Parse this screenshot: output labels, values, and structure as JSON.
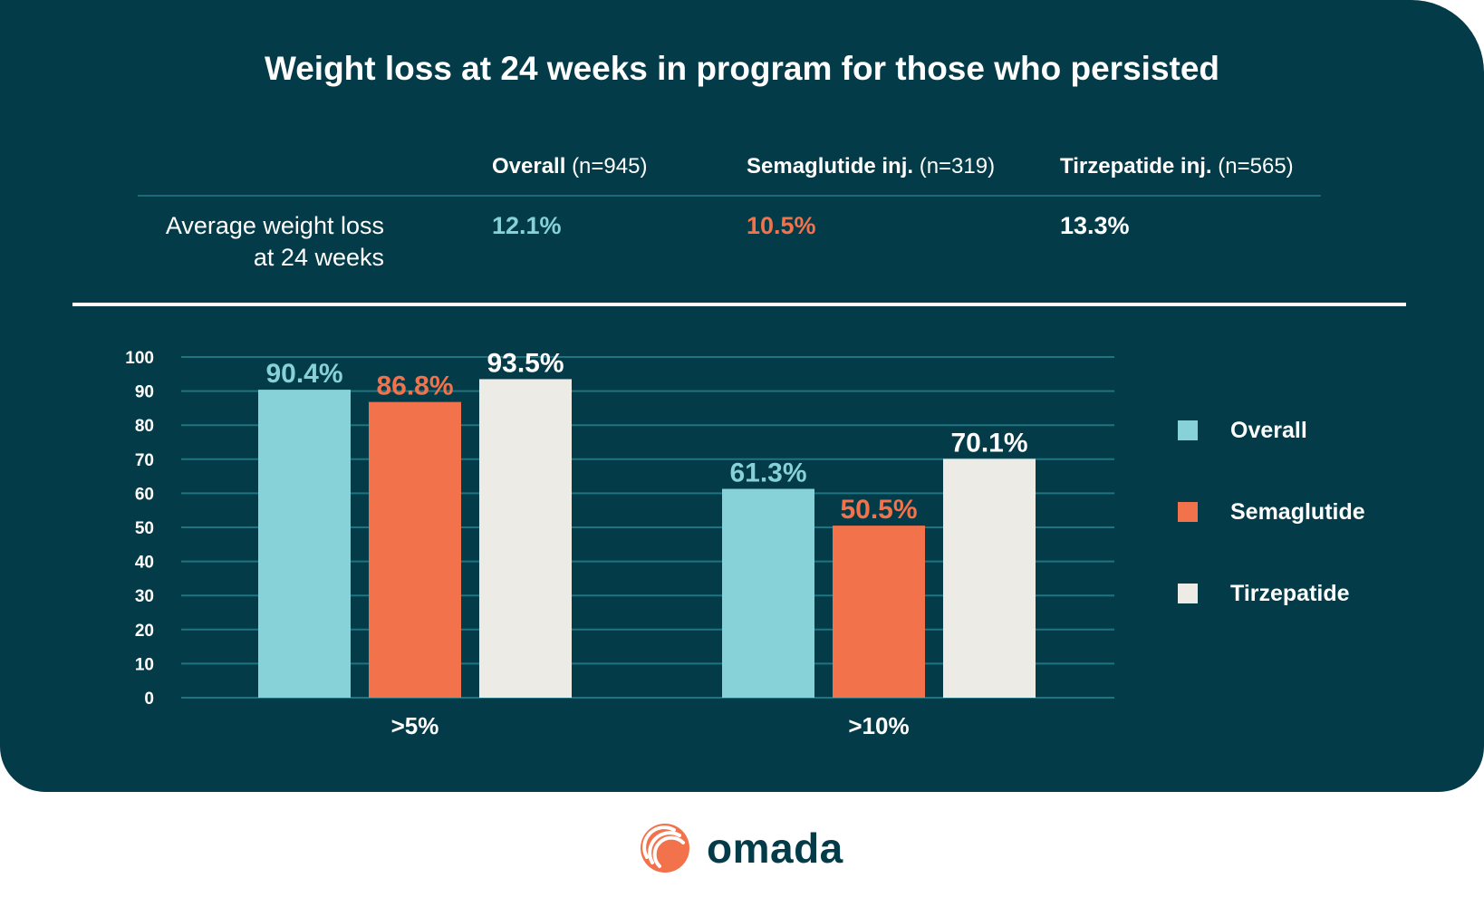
{
  "title": "Weight loss at 24 weeks in program for those who persisted",
  "table": {
    "columns": [
      {
        "name": "Overall",
        "n": "(n=945)",
        "value": "12.1%",
        "color": "#86d2d8"
      },
      {
        "name": "Semaglutide inj.",
        "n": "(n=319)",
        "value": "10.5%",
        "color": "#f2724b"
      },
      {
        "name": "Tirzepatide inj.",
        "n": "(n=565)",
        "value": "13.3%",
        "color": "#ffffff"
      }
    ],
    "row_label_line1": "Average weight loss",
    "row_label_line2": "at 24 weeks"
  },
  "chart_data": {
    "type": "bar",
    "title": "Weight loss at 24 weeks in program for those who persisted",
    "xlabel": "",
    "ylabel": "",
    "ylim": [
      0,
      100
    ],
    "yticks": [
      0,
      10,
      20,
      30,
      40,
      50,
      60,
      70,
      80,
      90,
      100
    ],
    "grid": true,
    "categories": [
      ">5%",
      ">10%"
    ],
    "series": [
      {
        "name": "Overall",
        "values": [
          90.4,
          61.3
        ],
        "labels": [
          "90.4%",
          "61.3%"
        ],
        "color": "#86d2d8"
      },
      {
        "name": "Semaglutide",
        "values": [
          86.8,
          50.5
        ],
        "labels": [
          "86.8%",
          "50.5%"
        ],
        "color": "#f2724b"
      },
      {
        "name": "Tirzepatide",
        "values": [
          93.5,
          70.1
        ],
        "labels": [
          "93.5%",
          "70.1%"
        ],
        "color": "#ecebe6"
      }
    ],
    "legend_position": "right"
  },
  "legend": [
    {
      "label": "Overall",
      "color": "#86d2d8"
    },
    {
      "label": "Semaglutide",
      "color": "#f2724b"
    },
    {
      "label": "Tirzepatide",
      "color": "#ecebe6"
    }
  ],
  "brand": {
    "name": "omada",
    "icon": "omada-logo-icon",
    "color": "#f2724b"
  }
}
